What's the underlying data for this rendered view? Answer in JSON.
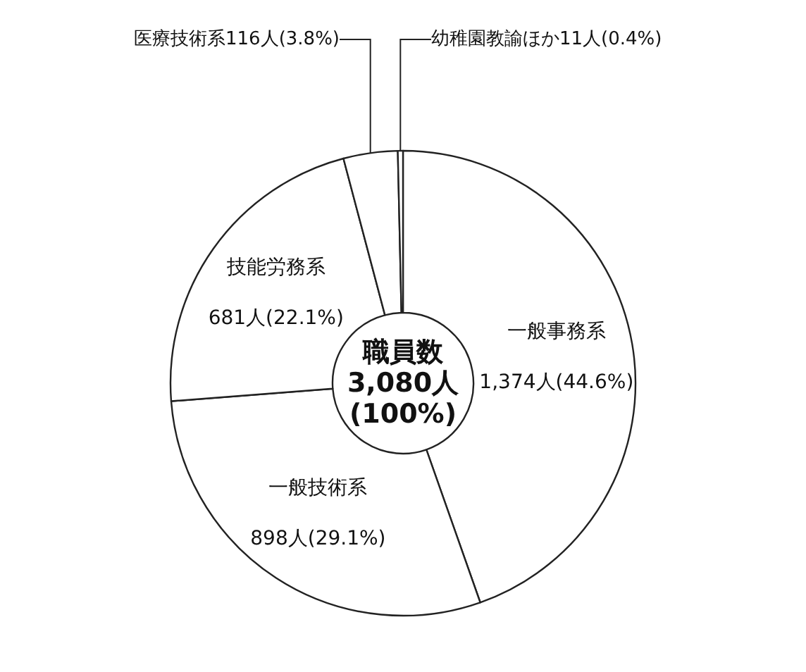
{
  "chart_data": {
    "type": "donut",
    "categories": [
      "一般事務系",
      "一般技術系",
      "技能労務系",
      "医療技術系",
      "幼稚園教諭ほか"
    ],
    "values": [
      1374,
      898,
      681,
      116,
      11
    ],
    "value_labels": [
      "1,374人(44.6%)",
      "898人(29.1%)",
      "681人(22.1%)",
      "116人(3.8%)",
      "11人(0.4%)"
    ],
    "colors": [
      "#ffffff",
      "#ffffff",
      "#ffffff",
      "#ffffff",
      "#ffffff"
    ],
    "annotations": [
      "職員数\n3,080人\n(100%)"
    ],
    "legend": false
  }
}
